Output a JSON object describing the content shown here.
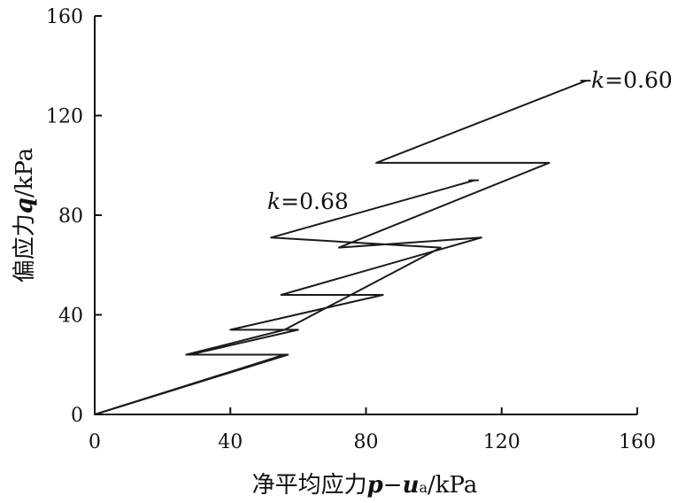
{
  "chart_data": {
    "type": "line",
    "xlabel": {
      "main": "净平均应力",
      "p": "p",
      "dash": "−",
      "u": "u",
      "sub": "a",
      "unit": "/kPa"
    },
    "ylabel": {
      "main": "偏应力",
      "q": "q",
      "unit": "/kPa"
    },
    "xlim": [
      0,
      160
    ],
    "ylim": [
      0,
      160
    ],
    "xticks": [
      "0",
      "40",
      "80",
      "120",
      "160"
    ],
    "yticks": [
      "0",
      "40",
      "80",
      "120",
      "160"
    ],
    "series": [
      {
        "annotation": {
          "k": "k",
          "value": "=0.60"
        },
        "x": [
          0,
          56,
          28,
          60,
          40,
          85,
          55,
          114,
          72,
          134,
          83,
          145
        ],
        "y": [
          0,
          24,
          24,
          34,
          34,
          48,
          48,
          71,
          67,
          101,
          101,
          134
        ]
      },
      {
        "annotation": {
          "k": "k",
          "value": "=0.68"
        },
        "x": [
          0,
          57,
          27,
          56,
          102,
          52,
          112
        ],
        "y": [
          0,
          24,
          24,
          34,
          67,
          71,
          94
        ]
      }
    ]
  }
}
